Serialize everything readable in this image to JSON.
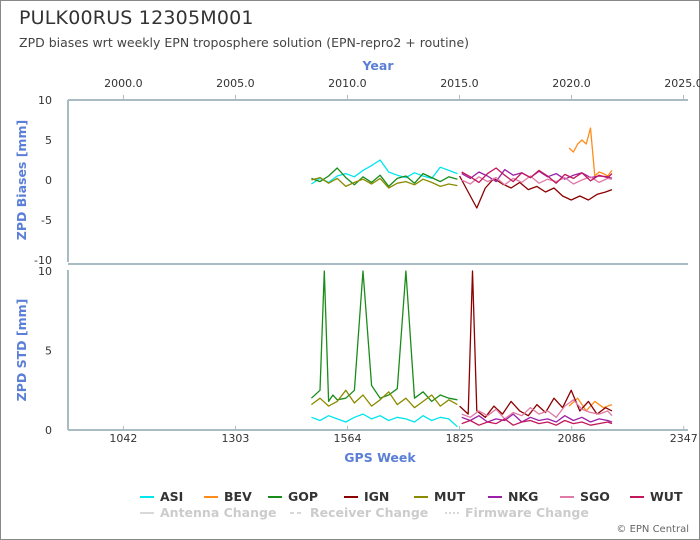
{
  "header": {
    "title": "PULK00RUS 12305M001",
    "subtitle": "ZPD biases wrt weekly EPN troposphere solution (EPN-repro2 + routine)"
  },
  "credit": "© EPN Central",
  "colors": {
    "ASI": "#00e5ee",
    "BEV": "#ff8c1a",
    "GOP": "#1a8c1a",
    "IGN": "#8b0000",
    "MUT": "#8b8b00",
    "NKG": "#9b1fa8",
    "SGO": "#e07aa6",
    "WUT": "#c2185b",
    "axis": "#a9bcc4",
    "axis_label": "#5b7fd6"
  },
  "chart_data": [
    {
      "type": "line",
      "panel": "biases",
      "ylabel": "ZPD Biases [mm]",
      "ylim": [
        -10,
        10
      ],
      "yticks": [
        "10",
        "5",
        "0",
        "-5",
        "-10"
      ],
      "top_axis_label": "Year",
      "top_ticks": [
        "2000.0",
        "2005.0",
        "2010.0",
        "2015.0",
        "2020.0",
        "2025.0"
      ],
      "top_tick_values": [
        2000,
        2005,
        2010,
        2015,
        2020,
        2025
      ],
      "x_unit": "GPS Week",
      "series": [
        {
          "name": "ASI",
          "x": [
            1480,
            1500,
            1520,
            1540,
            1560,
            1580,
            1600,
            1620,
            1640,
            1660,
            1680,
            1700,
            1720,
            1740,
            1760,
            1780,
            1800,
            1820
          ],
          "y": [
            -0.5,
            0.2,
            -0.3,
            0.5,
            0.8,
            0.4,
            1.2,
            1.8,
            2.5,
            1.0,
            0.6,
            0.3,
            0.9,
            0.5,
            0.2,
            1.6,
            1.2,
            0.8
          ]
        },
        {
          "name": "BEV",
          "x": [
            2080,
            2090,
            2100,
            2110,
            2120,
            2125,
            2130,
            2140,
            2150,
            2160,
            2170,
            2180
          ],
          "y": [
            4.0,
            3.5,
            4.5,
            5.0,
            4.5,
            5.5,
            6.5,
            0.5,
            1.0,
            0.8,
            0.5,
            1.2
          ]
        },
        {
          "name": "GOP",
          "x": [
            1480,
            1500,
            1520,
            1540,
            1560,
            1580,
            1600,
            1620,
            1640,
            1660,
            1680,
            1700,
            1720,
            1740,
            1760,
            1780,
            1800,
            1820
          ],
          "y": [
            0.2,
            -0.2,
            0.5,
            1.5,
            0.3,
            -0.6,
            0.4,
            -0.3,
            0.6,
            -0.8,
            0.2,
            0.5,
            -0.4,
            0.8,
            0.3,
            -0.2,
            0.4,
            0.1
          ]
        },
        {
          "name": "IGN",
          "x": [
            1825,
            1845,
            1865,
            1885,
            1905,
            1925,
            1945,
            1965,
            1985,
            2005,
            2025,
            2045,
            2065,
            2085,
            2105,
            2125,
            2145,
            2165,
            2180
          ],
          "y": [
            0.5,
            -1.5,
            -3.5,
            -1.0,
            0.2,
            -0.5,
            -1.0,
            -0.3,
            -1.2,
            -0.8,
            -1.5,
            -1.0,
            -2.0,
            -2.5,
            -2.0,
            -2.5,
            -1.8,
            -1.5,
            -1.2
          ]
        },
        {
          "name": "MUT",
          "x": [
            1480,
            1500,
            1520,
            1540,
            1560,
            1580,
            1600,
            1620,
            1640,
            1660,
            1680,
            1700,
            1720,
            1740,
            1760,
            1780,
            1800,
            1820
          ],
          "y": [
            0.0,
            0.3,
            -0.4,
            0.2,
            -0.8,
            -0.3,
            0.1,
            -0.5,
            0.2,
            -1.0,
            -0.4,
            -0.2,
            -0.6,
            0.1,
            -0.3,
            -0.8,
            -0.5,
            -0.7
          ]
        },
        {
          "name": "NKG",
          "x": [
            1830,
            1850,
            1870,
            1890,
            1910,
            1930,
            1950,
            1970,
            1990,
            2010,
            2030,
            2050,
            2070,
            2090,
            2110,
            2130,
            2150,
            2170,
            2180
          ],
          "y": [
            0.8,
            0.2,
            1.0,
            0.5,
            -0.2,
            1.3,
            0.6,
            0.9,
            0.3,
            1.1,
            0.4,
            0.8,
            0.1,
            0.6,
            0.9,
            0.3,
            0.5,
            0.4,
            0.2
          ]
        },
        {
          "name": "SGO",
          "x": [
            1830,
            1850,
            1870,
            1890,
            1910,
            1930,
            1950,
            1970,
            1990,
            2010,
            2030,
            2050,
            2070,
            2090,
            2110,
            2130,
            2150,
            2170,
            2180
          ],
          "y": [
            0.0,
            -0.5,
            0.4,
            -0.2,
            0.3,
            -0.6,
            0.2,
            -0.3,
            0.5,
            -0.4,
            0.1,
            -0.2,
            0.3,
            -0.5,
            0.0,
            0.4,
            -0.3,
            0.2,
            0.1
          ]
        },
        {
          "name": "WUT",
          "x": [
            1830,
            1850,
            1870,
            1890,
            1910,
            1930,
            1950,
            1970,
            1990,
            2010,
            2030,
            2050,
            2070,
            2090,
            2110,
            2130,
            2150,
            2170,
            2180
          ],
          "y": [
            1.0,
            0.4,
            -0.3,
            0.8,
            1.5,
            0.6,
            -0.2,
            0.9,
            0.3,
            1.2,
            0.5,
            -0.4,
            0.7,
            0.2,
            0.9,
            -0.1,
            0.6,
            0.3,
            0.8
          ]
        }
      ]
    },
    {
      "type": "line",
      "panel": "std",
      "ylabel": "ZPD STD [mm]",
      "ylim": [
        0,
        10
      ],
      "yticks": [
        "10",
        "5",
        "0"
      ],
      "xlabel": "GPS Week",
      "xticks": [
        "1042",
        "1303",
        "1564",
        "1825",
        "2086",
        "2347"
      ],
      "xtick_values": [
        1042,
        1303,
        1564,
        1825,
        2086,
        2347
      ],
      "xlim": [
        913,
        2357
      ],
      "series": [
        {
          "name": "ASI",
          "x": [
            1480,
            1500,
            1520,
            1540,
            1560,
            1580,
            1600,
            1620,
            1640,
            1660,
            1680,
            1700,
            1720,
            1740,
            1760,
            1780,
            1800,
            1820
          ],
          "y": [
            0.8,
            0.6,
            0.9,
            0.7,
            0.5,
            0.8,
            1.0,
            0.7,
            0.9,
            0.6,
            0.8,
            0.7,
            0.5,
            0.9,
            0.6,
            0.8,
            0.7,
            0.2
          ]
        },
        {
          "name": "BEV",
          "x": [
            2080,
            2100,
            2120,
            2140,
            2160,
            2180
          ],
          "y": [
            1.5,
            2.0,
            1.2,
            1.8,
            1.4,
            1.6
          ]
        },
        {
          "name": "GOP",
          "x": [
            1480,
            1500,
            1510,
            1520,
            1530,
            1540,
            1560,
            1580,
            1600,
            1620,
            1640,
            1660,
            1680,
            1700,
            1720,
            1740,
            1760,
            1780,
            1800,
            1820
          ],
          "y": [
            2.0,
            2.5,
            10.0,
            1.8,
            2.2,
            1.9,
            2.0,
            2.5,
            10.0,
            2.8,
            2.0,
            2.2,
            2.6,
            10.0,
            2.0,
            2.4,
            1.8,
            2.2,
            2.0,
            1.9
          ]
        },
        {
          "name": "IGN",
          "x": [
            1825,
            1845,
            1855,
            1865,
            1885,
            1905,
            1925,
            1945,
            1965,
            1985,
            2005,
            2025,
            2045,
            2065,
            2085,
            2105,
            2125,
            2145,
            2165,
            2180
          ],
          "y": [
            1.5,
            1.0,
            10.0,
            1.2,
            0.8,
            1.5,
            1.0,
            1.8,
            1.2,
            0.9,
            1.6,
            1.1,
            2.0,
            1.4,
            2.5,
            1.2,
            1.8,
            1.0,
            1.4,
            1.2
          ]
        },
        {
          "name": "MUT",
          "x": [
            1480,
            1500,
            1520,
            1540,
            1560,
            1580,
            1600,
            1620,
            1640,
            1660,
            1680,
            1700,
            1720,
            1740,
            1760,
            1780,
            1800,
            1820
          ],
          "y": [
            1.6,
            2.0,
            1.5,
            1.8,
            2.5,
            1.7,
            2.2,
            1.5,
            1.9,
            2.4,
            1.6,
            2.0,
            1.4,
            1.8,
            2.2,
            1.5,
            1.9,
            1.6
          ]
        },
        {
          "name": "NKG",
          "x": [
            1830,
            1850,
            1870,
            1890,
            1910,
            1930,
            1950,
            1970,
            1990,
            2010,
            2030,
            2050,
            2070,
            2090,
            2110,
            2130,
            2150,
            2170,
            2180
          ],
          "y": [
            0.8,
            0.6,
            0.9,
            0.5,
            0.7,
            0.6,
            1.0,
            0.5,
            0.8,
            0.6,
            0.7,
            0.5,
            0.9,
            0.6,
            0.8,
            0.5,
            0.7,
            0.6,
            0.5
          ]
        },
        {
          "name": "SGO",
          "x": [
            1830,
            1850,
            1870,
            1890,
            1910,
            1930,
            1950,
            1970,
            1990,
            2010,
            2030,
            2050,
            2070,
            2090,
            2110,
            2130,
            2150,
            2170,
            2180
          ],
          "y": [
            1.0,
            0.8,
            1.2,
            0.9,
            1.3,
            0.7,
            1.1,
            0.9,
            1.4,
            1.0,
            1.2,
            0.8,
            1.5,
            1.9,
            1.3,
            1.1,
            1.0,
            1.2,
            0.9
          ]
        },
        {
          "name": "WUT",
          "x": [
            1830,
            1850,
            1870,
            1890,
            1910,
            1930,
            1950,
            1970,
            1990,
            2010,
            2030,
            2050,
            2070,
            2090,
            2110,
            2130,
            2150,
            2170,
            2180
          ],
          "y": [
            0.4,
            0.6,
            0.3,
            0.5,
            0.4,
            0.7,
            0.3,
            0.5,
            0.6,
            0.4,
            0.5,
            0.3,
            0.6,
            0.4,
            0.5,
            0.3,
            0.4,
            0.5,
            0.4
          ]
        }
      ]
    }
  ],
  "legend": {
    "items": [
      "ASI",
      "BEV",
      "GOP",
      "IGN",
      "MUT",
      "NKG",
      "SGO",
      "WUT"
    ],
    "events": [
      "Antenna Change",
      "Receiver Change",
      "Firmware Change"
    ]
  }
}
